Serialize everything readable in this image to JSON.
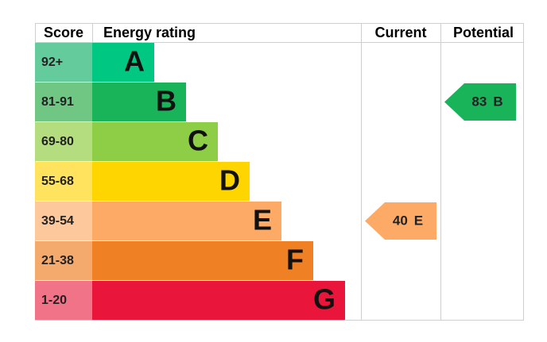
{
  "header": {
    "score": "Score",
    "rating": "Energy rating",
    "current": "Current",
    "potential": "Potential"
  },
  "bands": [
    {
      "score": "92+",
      "letter": "A",
      "color": "#00c781",
      "light": "#64cc9c"
    },
    {
      "score": "81-91",
      "letter": "B",
      "color": "#19b459",
      "light": "#70c683"
    },
    {
      "score": "69-80",
      "letter": "C",
      "color": "#8dce46",
      "light": "#b3dd7e"
    },
    {
      "score": "55-68",
      "letter": "D",
      "color": "#ffd500",
      "light": "#ffe35e"
    },
    {
      "score": "39-54",
      "letter": "E",
      "color": "#fcaa65",
      "light": "#fdc99c"
    },
    {
      "score": "21-38",
      "letter": "F",
      "color": "#ef8023",
      "light": "#f4aa6c"
    },
    {
      "score": "1-20",
      "letter": "G",
      "color": "#e9153b",
      "light": "#f07387"
    }
  ],
  "current": {
    "value": 40,
    "rating": "E"
  },
  "potential": {
    "value": 83,
    "rating": "B"
  }
}
